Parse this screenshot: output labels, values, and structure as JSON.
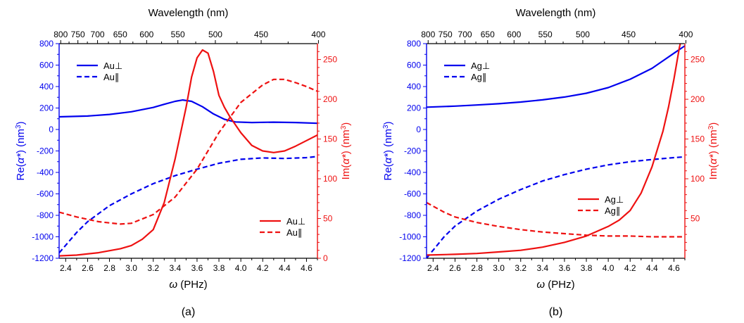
{
  "colors": {
    "re": "#0000ee",
    "im": "#ee1111",
    "frame": "#000000"
  },
  "chart_data": [
    {
      "type": "line",
      "panel_label": "(a)",
      "top_title": "Wavelength (nm)",
      "xlabel": {
        "pre": "",
        "italic": "ω",
        "post": " (PHz)"
      },
      "ylabel_left": {
        "pre": "Re(",
        "italic": "α*",
        "post": ") (nm",
        "sup": "3",
        "close": ")"
      },
      "ylabel_right": {
        "pre": "Im(",
        "italic": "α*",
        "post": ") (nm",
        "sup": "3",
        "close": ")"
      },
      "xlim": [
        2.34,
        4.7
      ],
      "ylim_left": [
        -1200,
        800
      ],
      "ylim_right": [
        0,
        270
      ],
      "x_ticks": [
        "2.4",
        "2.6",
        "2.8",
        "3.0",
        "3.2",
        "3.4",
        "3.6",
        "3.8",
        "4.0",
        "4.2",
        "4.4",
        "4.6"
      ],
      "y_ticks_left": [
        "800",
        "600",
        "400",
        "200",
        "0",
        "-200",
        "-400",
        "-600",
        "-800",
        "-1000",
        "-1200"
      ],
      "y_ticks_right": [
        "250",
        "200",
        "150",
        "100",
        "50",
        "0"
      ],
      "top_ticks": [
        "800",
        "750",
        "700",
        "650",
        "600",
        "550",
        "500",
        "450",
        "400"
      ],
      "legend_left": {
        "items": [
          "Au⊥",
          "Au∥"
        ]
      },
      "legend_right": {
        "items": [
          "Au⊥",
          "Au∥"
        ]
      },
      "series": [
        {
          "name": "Au⊥",
          "axis": "left",
          "style": "solid",
          "x": [
            2.34,
            2.6,
            2.8,
            3.0,
            3.2,
            3.3,
            3.4,
            3.47,
            3.55,
            3.65,
            3.75,
            3.85,
            3.95,
            4.1,
            4.3,
            4.5,
            4.7
          ],
          "y": [
            118,
            125,
            140,
            165,
            205,
            235,
            262,
            275,
            262,
            212,
            145,
            95,
            70,
            65,
            68,
            65,
            58
          ]
        },
        {
          "name": "Au∥",
          "axis": "left",
          "style": "dashed",
          "x": [
            2.34,
            2.5,
            2.6,
            2.8,
            3.0,
            3.2,
            3.4,
            3.6,
            3.8,
            4.0,
            4.2,
            4.4,
            4.6,
            4.7
          ],
          "y": [
            -1150,
            -960,
            -860,
            -710,
            -600,
            -505,
            -430,
            -370,
            -315,
            -278,
            -265,
            -270,
            -262,
            -252
          ]
        },
        {
          "name": "Au⊥",
          "axis": "right",
          "style": "solid",
          "x": [
            2.34,
            2.5,
            2.7,
            2.9,
            3.0,
            3.1,
            3.2,
            3.3,
            3.4,
            3.5,
            3.55,
            3.6,
            3.65,
            3.7,
            3.75,
            3.8,
            3.85,
            3.9,
            4.0,
            4.1,
            4.2,
            4.3,
            4.4,
            4.5,
            4.6,
            4.7
          ],
          "y": [
            3,
            4,
            7,
            12,
            16,
            24,
            36,
            70,
            125,
            190,
            228,
            252,
            262,
            258,
            235,
            205,
            190,
            178,
            158,
            142,
            135,
            133,
            135,
            141,
            148,
            155
          ]
        },
        {
          "name": "Au∥",
          "axis": "right",
          "style": "dashed",
          "x": [
            2.34,
            2.5,
            2.7,
            2.9,
            3.0,
            3.2,
            3.4,
            3.6,
            3.8,
            4.0,
            4.2,
            4.3,
            4.4,
            4.5,
            4.6,
            4.7
          ],
          "y": [
            58,
            52,
            46,
            43,
            44,
            55,
            77,
            112,
            158,
            196,
            218,
            225,
            225,
            221,
            216,
            210
          ]
        }
      ]
    },
    {
      "type": "line",
      "panel_label": "(b)",
      "top_title": "Wavelength (nm)",
      "xlabel": {
        "pre": "",
        "italic": "ω",
        "post": " (PHz)"
      },
      "ylabel_left": {
        "pre": "Re(",
        "italic": "α*",
        "post": ") (nm",
        "sup": "3",
        "close": ")"
      },
      "ylabel_right": {
        "pre": "Im(",
        "italic": "α*",
        "post": ") (nm",
        "sup": "3",
        "close": ")"
      },
      "xlim": [
        2.34,
        4.7
      ],
      "ylim_left": [
        -1200,
        800
      ],
      "ylim_right": [
        0,
        270
      ],
      "x_ticks": [
        "2.4",
        "2.6",
        "2.8",
        "3.0",
        "3.2",
        "3.4",
        "3.6",
        "3.8",
        "4.0",
        "4.2",
        "4.4",
        "4.6"
      ],
      "y_ticks_left": [
        "800",
        "600",
        "400",
        "200",
        "0",
        "-200",
        "-400",
        "-600",
        "-800",
        "-1000",
        "-1200"
      ],
      "y_ticks_right": [
        "250",
        "200",
        "150",
        "100",
        "50"
      ],
      "top_ticks": [
        "800",
        "750",
        "700",
        "650",
        "600",
        "550",
        "500",
        "450",
        "400"
      ],
      "legend_left": {
        "items": [
          "Ag⊥",
          "Ag∥"
        ]
      },
      "legend_right": {
        "items": [
          "Ag⊥",
          "Ag∥"
        ]
      },
      "series": [
        {
          "name": "Ag⊥",
          "axis": "left",
          "style": "solid",
          "x": [
            2.34,
            2.6,
            2.8,
            3.0,
            3.2,
            3.4,
            3.6,
            3.8,
            4.0,
            4.2,
            4.4,
            4.5,
            4.6,
            4.7
          ],
          "y": [
            208,
            218,
            228,
            240,
            256,
            276,
            302,
            338,
            390,
            468,
            570,
            640,
            710,
            780
          ]
        },
        {
          "name": "Ag∥",
          "axis": "left",
          "style": "dashed",
          "x": [
            2.34,
            2.5,
            2.6,
            2.8,
            3.0,
            3.2,
            3.4,
            3.6,
            3.8,
            4.0,
            4.2,
            4.4,
            4.6,
            4.7
          ],
          "y": [
            -1200,
            -1000,
            -900,
            -760,
            -650,
            -560,
            -480,
            -420,
            -370,
            -330,
            -300,
            -280,
            -262,
            -255
          ]
        },
        {
          "name": "Ag⊥",
          "axis": "right",
          "style": "solid",
          "x": [
            2.34,
            2.6,
            2.8,
            3.0,
            3.2,
            3.4,
            3.6,
            3.8,
            4.0,
            4.1,
            4.2,
            4.3,
            4.4,
            4.5,
            4.55,
            4.6,
            4.65,
            4.7
          ],
          "y": [
            4,
            5,
            6,
            8,
            10,
            14,
            20,
            28,
            40,
            48,
            60,
            82,
            115,
            160,
            190,
            225,
            265,
            295
          ]
        },
        {
          "name": "Ag∥",
          "axis": "right",
          "style": "dashed",
          "x": [
            2.34,
            2.5,
            2.6,
            2.8,
            3.0,
            3.2,
            3.4,
            3.6,
            3.8,
            4.0,
            4.2,
            4.4,
            4.6,
            4.7
          ],
          "y": [
            70,
            58,
            52,
            45,
            40,
            36,
            33,
            31,
            29,
            28,
            28,
            27,
            27,
            27
          ]
        }
      ]
    }
  ]
}
